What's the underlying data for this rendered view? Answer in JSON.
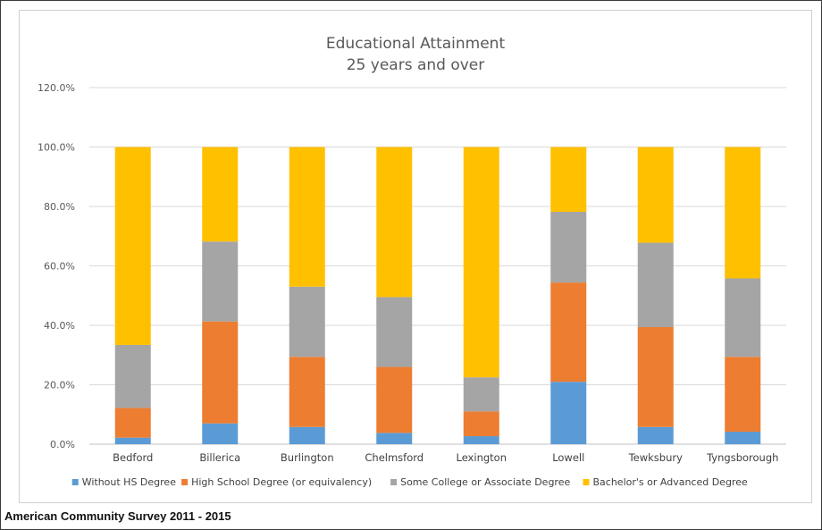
{
  "chart_data": {
    "type": "bar",
    "stacked": true,
    "title": "Educational Attainment",
    "subtitle": "25 years and over",
    "xlabel": "",
    "ylabel": "",
    "ylim": [
      0,
      120
    ],
    "y_ticks": [
      "0.0%",
      "20.0%",
      "40.0%",
      "60.0%",
      "80.0%",
      "100.0%",
      "120.0%"
    ],
    "y_tick_values": [
      0,
      20,
      40,
      60,
      80,
      100,
      120
    ],
    "grid": true,
    "legend_position": "bottom",
    "categories": [
      "Bedford",
      "Billerica",
      "Burlington",
      "Chelmsford",
      "Lexington",
      "Lowell",
      "Tewksbury",
      "Tyngsborough"
    ],
    "series": [
      {
        "name": "Without HS Degree",
        "color": "#5b9bd5",
        "values": [
          2.2,
          7.0,
          5.8,
          3.8,
          2.7,
          21.0,
          5.8,
          4.2
        ]
      },
      {
        "name": "High School Degree (or equivalency)",
        "color": "#ed7d31",
        "values": [
          10.0,
          34.3,
          23.6,
          22.2,
          8.3,
          33.4,
          33.6,
          25.2
        ]
      },
      {
        "name": "Some College or Associate Degree",
        "color": "#a5a5a5",
        "values": [
          21.2,
          26.9,
          23.6,
          23.5,
          11.5,
          23.8,
          28.4,
          26.4
        ]
      },
      {
        "name": "Bachelor's or Advanced Degree",
        "color": "#ffc000",
        "values": [
          66.6,
          31.8,
          47.0,
          50.5,
          77.5,
          21.8,
          32.2,
          44.2
        ]
      }
    ]
  },
  "footer": {
    "source_note": "American Community Survey 2011 - 2015"
  }
}
